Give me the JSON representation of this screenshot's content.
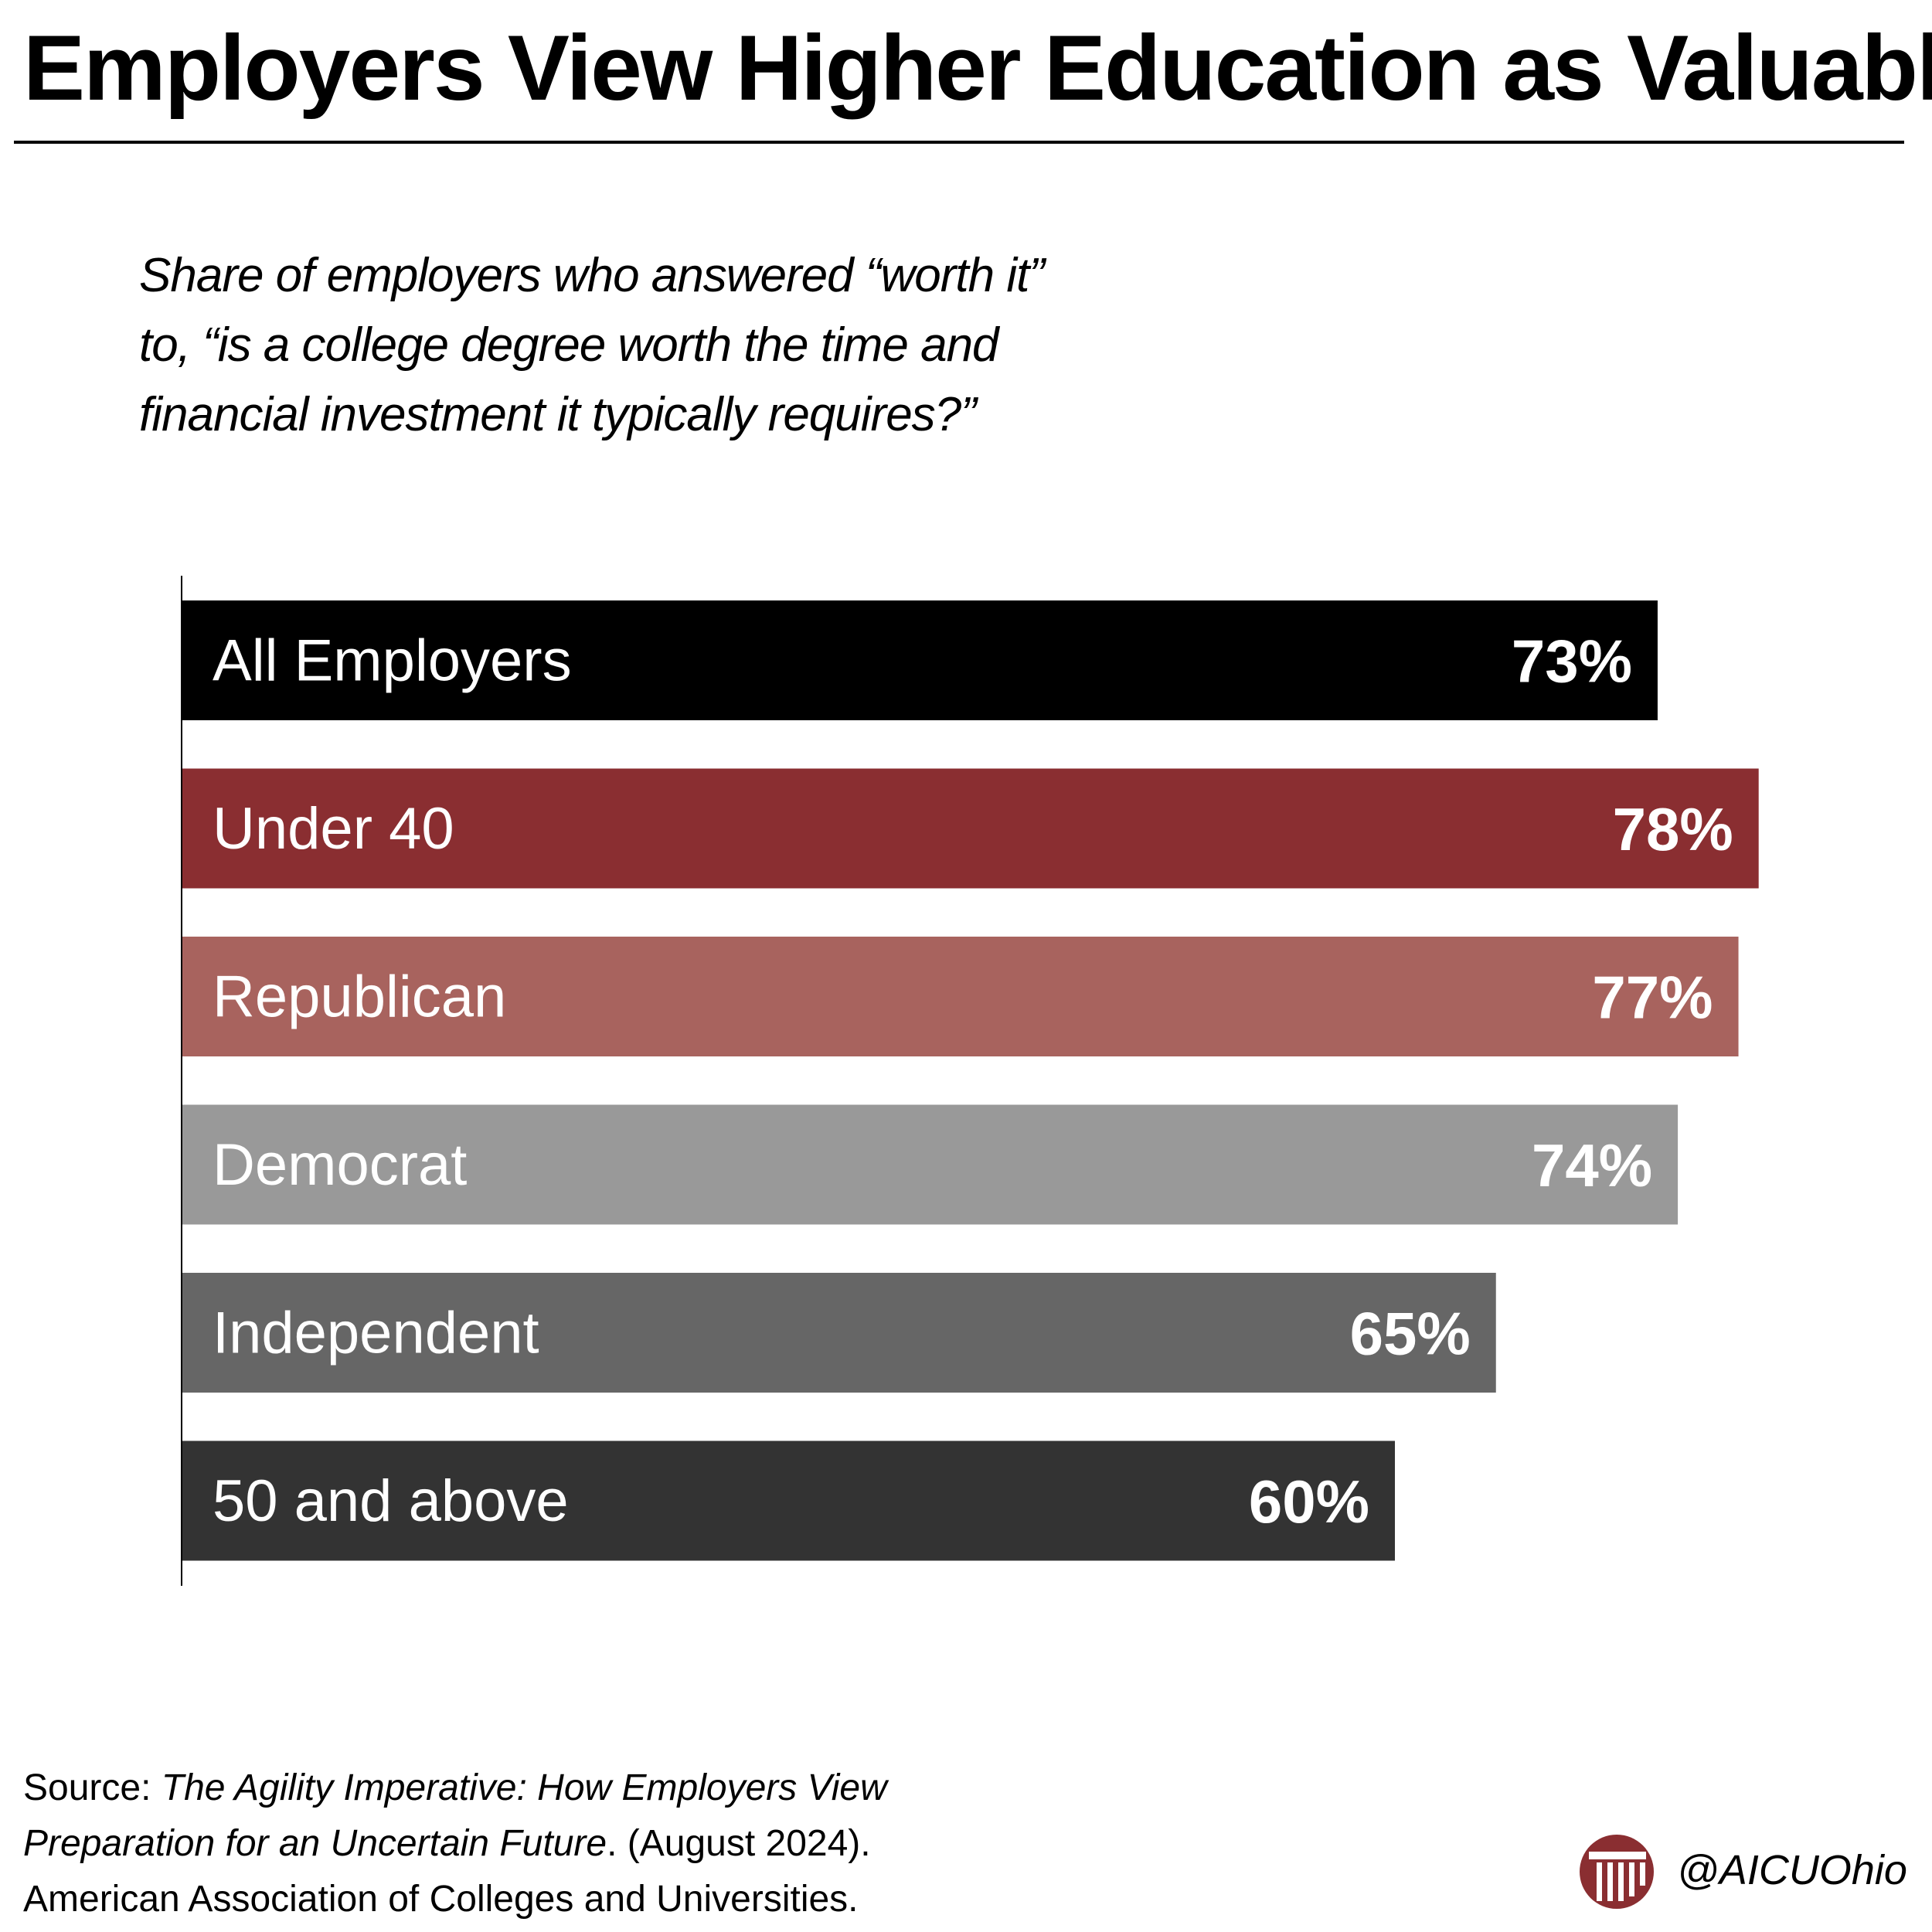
{
  "title": "Employers View Higher Education as Valuable",
  "subtitle_lines": [
    "Share of employers who answered “worth it”",
    "to, “is a college degree worth the time and",
    "financial investment it typically requires?”"
  ],
  "chart_data": {
    "type": "bar",
    "orientation": "horizontal",
    "title": "Employers View Higher Education as Valuable",
    "categories": [
      "All Employers",
      "Under 40",
      "Republican",
      "Democrat",
      "Independent",
      "50 and above"
    ],
    "values": [
      73,
      78,
      77,
      74,
      65,
      60
    ],
    "value_labels": [
      "73%",
      "78%",
      "77%",
      "74%",
      "65%",
      "60%"
    ],
    "bar_colors": [
      "#000000",
      "#8a2e31",
      "#a8635e",
      "#999999",
      "#666666",
      "#333333"
    ],
    "unit": "%",
    "grid": false,
    "legend": "none"
  },
  "source": {
    "prefix": "Source: ",
    "title_part1": "The Agility Imperative: How Employers View",
    "title_part2": "Preparation for an Uncertain Future",
    "suffix_line2": ". (August 2024).",
    "line3": "American Association of Colleges and Universities."
  },
  "brand": {
    "handle": "@AICUOhio",
    "logo_color": "#8a2e31",
    "logo_icon": "column-pillar-logo"
  }
}
